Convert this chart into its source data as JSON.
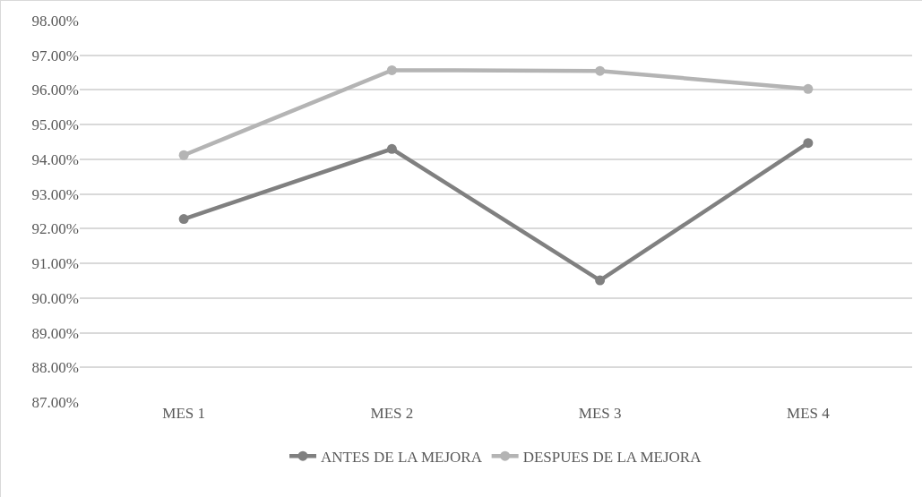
{
  "chart_data": {
    "type": "line",
    "categories": [
      "MES 1",
      "MES 2",
      "MES 3",
      "MES 4"
    ],
    "series": [
      {
        "name": "ANTES DE LA MEJORA",
        "color": "#808080",
        "values": [
          92.28,
          94.3,
          90.51,
          94.47
        ]
      },
      {
        "name": "DESPUES DE LA MEJORA",
        "color": "#b4b4b4",
        "values": [
          94.12,
          96.57,
          96.55,
          96.03
        ]
      }
    ],
    "ylim": [
      87,
      98
    ],
    "yticks": [
      {
        "value": 87,
        "label": "87.00%"
      },
      {
        "value": 88,
        "label": "88.00%"
      },
      {
        "value": 89,
        "label": "89.00%"
      },
      {
        "value": 90,
        "label": "90.00%"
      },
      {
        "value": 91,
        "label": "91.00%"
      },
      {
        "value": 92,
        "label": "92.00%"
      },
      {
        "value": 93,
        "label": "93.00%"
      },
      {
        "value": 94,
        "label": "94.00%"
      },
      {
        "value": 95,
        "label": "95.00%"
      },
      {
        "value": 96,
        "label": "96.00%"
      },
      {
        "value": 97,
        "label": "97.00%"
      },
      {
        "value": 98,
        "label": "98.00%"
      }
    ],
    "grid": "y",
    "legend": "bottom",
    "marker": "circle",
    "line_style": "solid"
  }
}
